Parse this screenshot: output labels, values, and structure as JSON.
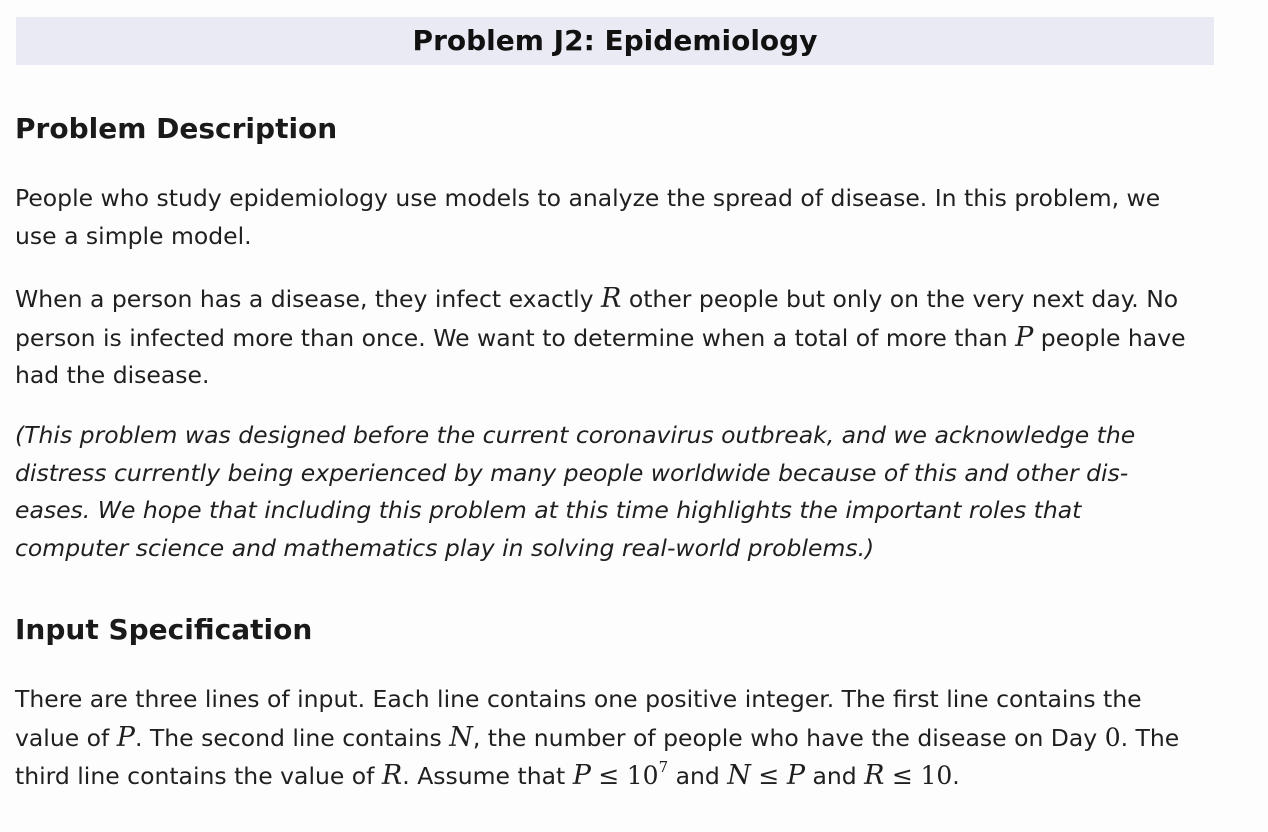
{
  "title": "Problem J2: Epidemiology",
  "description": {
    "heading": "Problem Description",
    "p1": "People who study epidemiology use models to analyze the spread of disease. In this problem, we use a simple model.",
    "p2": {
      "t1": "When a person has a disease, they infect exactly ",
      "var_R": "R",
      "t2": " other people but only on the very next day. No person is infected more than once. We want to determine when a total of more than ",
      "var_P": "P",
      "t3": " people have had the disease."
    },
    "p3_line1": "(This problem was designed before the current coronavirus outbreak, and we acknowledge the",
    "p3_line2": "distress currently being experienced by many people worldwide because of this and other dis-",
    "p3_line3": "eases. We hope that including this problem at this time highlights the important roles that",
    "p3_line4": "computer science and mathematics play in solving real-world problems.)"
  },
  "input": {
    "heading": "Input Specification",
    "t1": "There are three lines of input. Each line contains one positive integer. The first line contains the value of ",
    "var_P": "P",
    "t2": ". The second line contains ",
    "var_N": "N",
    "t3": ", the number of people who have the disease on Day ",
    "num_0": "0",
    "t4": ". The third line contains the value of ",
    "var_R": "R",
    "t5": ". Assume that ",
    "c1_lhs": "P",
    "leq": "≤",
    "c1_base": "10",
    "c1_exp": "7",
    "and1": " and ",
    "c2_lhs": "N",
    "c2_rhs": "P",
    "and2": " and ",
    "c3_lhs": "R",
    "c3_rhs": "10",
    "end": "."
  }
}
